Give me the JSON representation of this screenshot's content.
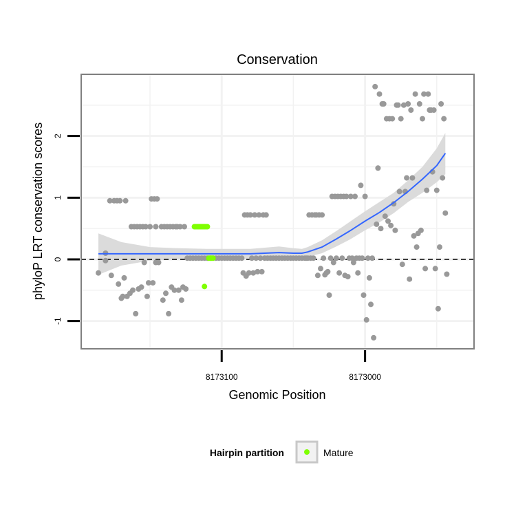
{
  "chart_data": {
    "type": "scatter",
    "title": "Conservation",
    "xlabel": "Genomic Position",
    "ylabel": "phyloP LRT conservation scores",
    "x_reversed": true,
    "xlim": [
      8173198,
      8172924
    ],
    "ylim": [
      -1.45,
      3.0
    ],
    "x_ticks": [
      8173100,
      8173000
    ],
    "x_tick_labels": [
      "8173100",
      "8173000"
    ],
    "y_ticks": [
      -1,
      0,
      1,
      2
    ],
    "y_tick_labels": [
      "-1",
      "0",
      "1",
      "2"
    ],
    "grid": true,
    "reference_line": {
      "y": 0,
      "style": "dashed"
    },
    "legend": {
      "title": "Hairpin partition",
      "position": "bottom",
      "entries": [
        {
          "name": "Mature",
          "color": "#7fff00"
        }
      ]
    },
    "colors": {
      "points": "#999999",
      "mature": "#7fff00",
      "smooth": "#3366ff",
      "ribbon": "#d9d9d9",
      "panel_border": "#7f7f7f"
    },
    "series": [
      {
        "name": "",
        "color": "#999999",
        "points": [
          [
            8173186,
            -0.22
          ],
          [
            8173181,
            0.1
          ],
          [
            8173181,
            -0.02
          ],
          [
            8173178,
            0.95
          ],
          [
            8173177,
            -0.26
          ],
          [
            8173175,
            0.95
          ],
          [
            8173173,
            0.95
          ],
          [
            8173172,
            -0.4
          ],
          [
            8173171,
            0.95
          ],
          [
            8173170,
            -0.63
          ],
          [
            8173169,
            -0.6
          ],
          [
            8173168,
            -0.3
          ],
          [
            8173167,
            0.95
          ],
          [
            8173166,
            -0.6
          ],
          [
            8173164,
            -0.55
          ],
          [
            8173163,
            0.53
          ],
          [
            8173162,
            -0.5
          ],
          [
            8173161,
            0.53
          ],
          [
            8173160,
            -0.88
          ],
          [
            8173159,
            0.53
          ],
          [
            8173158,
            -0.48
          ],
          [
            8173157,
            0.53
          ],
          [
            8173156,
            -0.45
          ],
          [
            8173155,
            0.53
          ],
          [
            8173154,
            -0.05
          ],
          [
            8173153,
            0.53
          ],
          [
            8173152,
            -0.6
          ],
          [
            8173151,
            -0.38
          ],
          [
            8173150,
            0.53
          ],
          [
            8173149,
            0.98
          ],
          [
            8173148,
            -0.38
          ],
          [
            8173147,
            0.98
          ],
          [
            8173146,
            0.53
          ],
          [
            8173146,
            -0.05
          ],
          [
            8173145,
            0.98
          ],
          [
            8173144,
            -0.05
          ],
          [
            8173142,
            0.53
          ],
          [
            8173141,
            -0.66
          ],
          [
            8173140,
            0.53
          ],
          [
            8173139,
            -0.55
          ],
          [
            8173138,
            0.53
          ],
          [
            8173137,
            -0.88
          ],
          [
            8173136,
            0.53
          ],
          [
            8173135,
            -0.45
          ],
          [
            8173134,
            0.53
          ],
          [
            8173133,
            -0.5
          ],
          [
            8173132,
            0.53
          ],
          [
            8173131,
            0.53
          ],
          [
            8173130,
            -0.5
          ],
          [
            8173129,
            0.53
          ],
          [
            8173128,
            -0.66
          ],
          [
            8173127,
            -0.45
          ],
          [
            8173126,
            0.53
          ],
          [
            8173125,
            -0.48
          ],
          [
            8173124,
            0.02
          ],
          [
            8173122,
            0.02
          ],
          [
            8173120,
            0.02
          ],
          [
            8173118,
            0.02
          ],
          [
            8173116,
            0.02
          ],
          [
            8173114,
            0.02
          ],
          [
            8173112,
            0.02
          ],
          [
            8173110,
            0.02
          ],
          [
            8173108,
            0.02
          ],
          [
            8173106,
            0.02
          ],
          [
            8173104,
            0.02
          ],
          [
            8173102,
            0.02
          ],
          [
            8173100,
            0.02
          ],
          [
            8173098,
            0.02
          ],
          [
            8173096,
            0.02
          ],
          [
            8173094,
            0.02
          ],
          [
            8173092,
            0.02
          ],
          [
            8173090,
            0.02
          ],
          [
            8173088,
            0.02
          ],
          [
            8173086,
            0.02
          ],
          [
            8173085,
            -0.22
          ],
          [
            8173084,
            0.72
          ],
          [
            8173083,
            -0.27
          ],
          [
            8173082,
            0.72
          ],
          [
            8173081,
            -0.22
          ],
          [
            8173080,
            0.72
          ],
          [
            8173079,
            0.02
          ],
          [
            8173078,
            -0.22
          ],
          [
            8173077,
            0.72
          ],
          [
            8173076,
            0.02
          ],
          [
            8173075,
            -0.2
          ],
          [
            8173074,
            0.72
          ],
          [
            8173073,
            0.02
          ],
          [
            8173072,
            -0.2
          ],
          [
            8173071,
            0.72
          ],
          [
            8173070,
            0.02
          ],
          [
            8173069,
            0.72
          ],
          [
            8173068,
            0.02
          ],
          [
            8173066,
            0.02
          ],
          [
            8173064,
            0.02
          ],
          [
            8173062,
            0.02
          ],
          [
            8173060,
            0.02
          ],
          [
            8173058,
            0.02
          ],
          [
            8173056,
            0.02
          ],
          [
            8173054,
            0.02
          ],
          [
            8173052,
            0.02
          ],
          [
            8173050,
            0.02
          ],
          [
            8173048,
            0.02
          ],
          [
            8173046,
            0.02
          ],
          [
            8173044,
            0.02
          ],
          [
            8173042,
            0.02
          ],
          [
            8173041,
            0.02
          ],
          [
            8173040,
            0.02
          ],
          [
            8173039,
            0.72
          ],
          [
            8173038,
            0.02
          ],
          [
            8173037,
            0.72
          ],
          [
            8173036,
            0.02
          ],
          [
            8173035,
            0.72
          ],
          [
            8173034,
            0.72
          ],
          [
            8173033,
            -0.26
          ],
          [
            8173032,
            0.72
          ],
          [
            8173031,
            -0.15
          ],
          [
            8173030,
            0.72
          ],
          [
            8173029,
            0.02
          ],
          [
            8173028,
            -0.25
          ],
          [
            8173027,
            -0.22
          ],
          [
            8173026,
            -0.2
          ],
          [
            8173025,
            -0.58
          ],
          [
            8173024,
            0.02
          ],
          [
            8173023,
            1.02
          ],
          [
            8173022,
            -0.05
          ],
          [
            8173021,
            1.02
          ],
          [
            8173020,
            0.02
          ],
          [
            8173019,
            1.02
          ],
          [
            8173018,
            -0.22
          ],
          [
            8173017,
            1.02
          ],
          [
            8173016,
            0.02
          ],
          [
            8173015,
            1.02
          ],
          [
            8173014,
            -0.26
          ],
          [
            8173013,
            1.02
          ],
          [
            8173012,
            -0.28
          ],
          [
            8173011,
            0.02
          ],
          [
            8173010,
            1.02
          ],
          [
            8173009,
            0.02
          ],
          [
            8173008,
            -0.05
          ],
          [
            8173007,
            1.02
          ],
          [
            8173006,
            0.02
          ],
          [
            8173005,
            -0.22
          ],
          [
            8173004,
            0.02
          ],
          [
            8173003,
            1.2
          ],
          [
            8173002,
            0.02
          ],
          [
            8173001,
            -0.58
          ],
          [
            8173000,
            1.02
          ],
          [
            8172999,
            -0.98
          ],
          [
            8172998,
            0.02
          ],
          [
            8172997,
            -0.3
          ],
          [
            8172996,
            -0.73
          ],
          [
            8172995,
            0.02
          ],
          [
            8172994,
            -1.27
          ],
          [
            8172993,
            2.8
          ],
          [
            8172992,
            0.57
          ],
          [
            8172991,
            1.48
          ],
          [
            8172990,
            2.68
          ],
          [
            8172989,
            0.5
          ],
          [
            8172988,
            2.52
          ],
          [
            8172987,
            2.52
          ],
          [
            8172986,
            0.7
          ],
          [
            8172985,
            2.28
          ],
          [
            8172984,
            0.62
          ],
          [
            8172983,
            2.28
          ],
          [
            8172982,
            0.55
          ],
          [
            8172981,
            2.28
          ],
          [
            8172980,
            0.9
          ],
          [
            8172979,
            0.47
          ],
          [
            8172978,
            2.5
          ],
          [
            8172977,
            2.5
          ],
          [
            8172976,
            1.1
          ],
          [
            8172975,
            2.28
          ],
          [
            8172974,
            -0.08
          ],
          [
            8172973,
            2.5
          ],
          [
            8172972,
            1.1
          ],
          [
            8172971,
            1.32
          ],
          [
            8172970,
            2.52
          ],
          [
            8172969,
            -0.32
          ],
          [
            8172968,
            2.42
          ],
          [
            8172967,
            1.32
          ],
          [
            8172966,
            0.38
          ],
          [
            8172965,
            2.68
          ],
          [
            8172964,
            0.2
          ],
          [
            8172963,
            0.42
          ],
          [
            8172962,
            2.52
          ],
          [
            8172961,
            0.47
          ],
          [
            8172960,
            2.28
          ],
          [
            8172959,
            2.68
          ],
          [
            8172958,
            -0.15
          ],
          [
            8172957,
            1.12
          ],
          [
            8172956,
            2.68
          ],
          [
            8172955,
            2.42
          ],
          [
            8172954,
            2.42
          ],
          [
            8172953,
            1.42
          ],
          [
            8172952,
            2.42
          ],
          [
            8172951,
            -0.15
          ],
          [
            8172950,
            1.12
          ],
          [
            8172949,
            -0.8
          ],
          [
            8172948,
            0.2
          ],
          [
            8172947,
            2.52
          ],
          [
            8172946,
            1.32
          ],
          [
            8172945,
            2.28
          ],
          [
            8172944,
            0.75
          ],
          [
            8172943,
            -0.24
          ]
        ]
      },
      {
        "name": "Mature",
        "color": "#7fff00",
        "points": [
          [
            8173119,
            0.53
          ],
          [
            8173118,
            0.53
          ],
          [
            8173117,
            0.53
          ],
          [
            8173116,
            0.53
          ],
          [
            8173115,
            0.53
          ],
          [
            8173114,
            0.53
          ],
          [
            8173113,
            0.53
          ],
          [
            8173112,
            0.53
          ],
          [
            8173111,
            0.53
          ],
          [
            8173110,
            0.53
          ],
          [
            8173109,
            0.02
          ],
          [
            8173108,
            0.02
          ],
          [
            8173107,
            0.02
          ],
          [
            8173106,
            0.02
          ],
          [
            8173112,
            -0.44
          ]
        ]
      }
    ],
    "smooth_line": {
      "name": "",
      "color": "#3366ff",
      "x": [
        8173186,
        8173170,
        8173150,
        8173130,
        8173110,
        8173090,
        8173080,
        8173070,
        8173060,
        8173050,
        8173044,
        8173040,
        8173030,
        8173020,
        8173010,
        8173000,
        8172990,
        8172980,
        8172970,
        8172960,
        8172950,
        8172944
      ],
      "y": [
        0.09,
        0.09,
        0.09,
        0.09,
        0.09,
        0.09,
        0.09,
        0.1,
        0.11,
        0.1,
        0.1,
        0.12,
        0.2,
        0.33,
        0.47,
        0.62,
        0.76,
        0.92,
        1.1,
        1.3,
        1.52,
        1.72
      ],
      "upper": [
        0.42,
        0.28,
        0.2,
        0.18,
        0.17,
        0.17,
        0.17,
        0.19,
        0.21,
        0.18,
        0.17,
        0.2,
        0.31,
        0.46,
        0.62,
        0.78,
        0.93,
        1.08,
        1.28,
        1.5,
        1.8,
        2.05
      ],
      "lower": [
        -0.25,
        -0.1,
        -0.02,
        0.0,
        0.01,
        0.01,
        0.01,
        0.01,
        0.01,
        0.02,
        0.03,
        0.04,
        0.1,
        0.21,
        0.33,
        0.47,
        0.6,
        0.75,
        0.93,
        1.08,
        1.25,
        1.38
      ]
    }
  }
}
